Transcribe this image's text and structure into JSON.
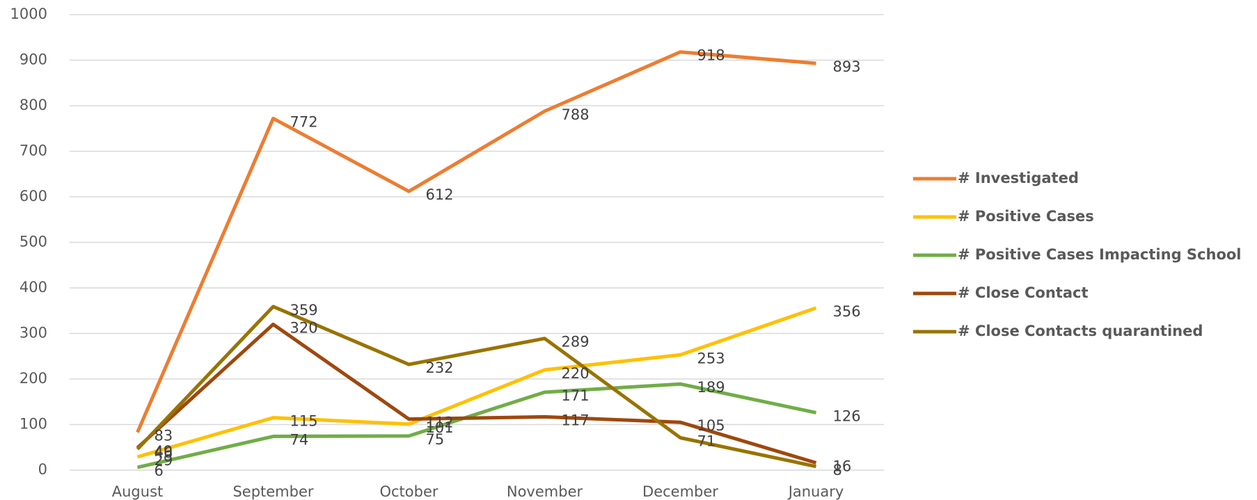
{
  "chart_data": {
    "type": "line",
    "categories": [
      "August",
      "September",
      "October",
      "November",
      "December",
      "January"
    ],
    "series": [
      {
        "name": "# Investigated",
        "color": "#ed7d31",
        "values": [
          83,
          772,
          612,
          788,
          918,
          893
        ]
      },
      {
        "name": "# Positive Cases",
        "color": "#ffc000",
        "values": [
          29,
          115,
          101,
          220,
          253,
          356
        ]
      },
      {
        "name": "# Positive Cases Impacting School",
        "color": "#70ad47",
        "values": [
          6,
          74,
          75,
          171,
          189,
          126
        ]
      },
      {
        "name": "# Close Contact",
        "color": "#9e480e",
        "values": [
          49,
          320,
          112,
          117,
          105,
          16
        ]
      },
      {
        "name": "# Close Contacts quarantined",
        "color": "#997300",
        "values": [
          46,
          359,
          232,
          289,
          71,
          8
        ]
      }
    ],
    "ylim": [
      0,
      1000
    ],
    "yticks": [
      0,
      100,
      200,
      300,
      400,
      500,
      600,
      700,
      800,
      900,
      1000
    ],
    "grid": true,
    "legend": "right"
  }
}
